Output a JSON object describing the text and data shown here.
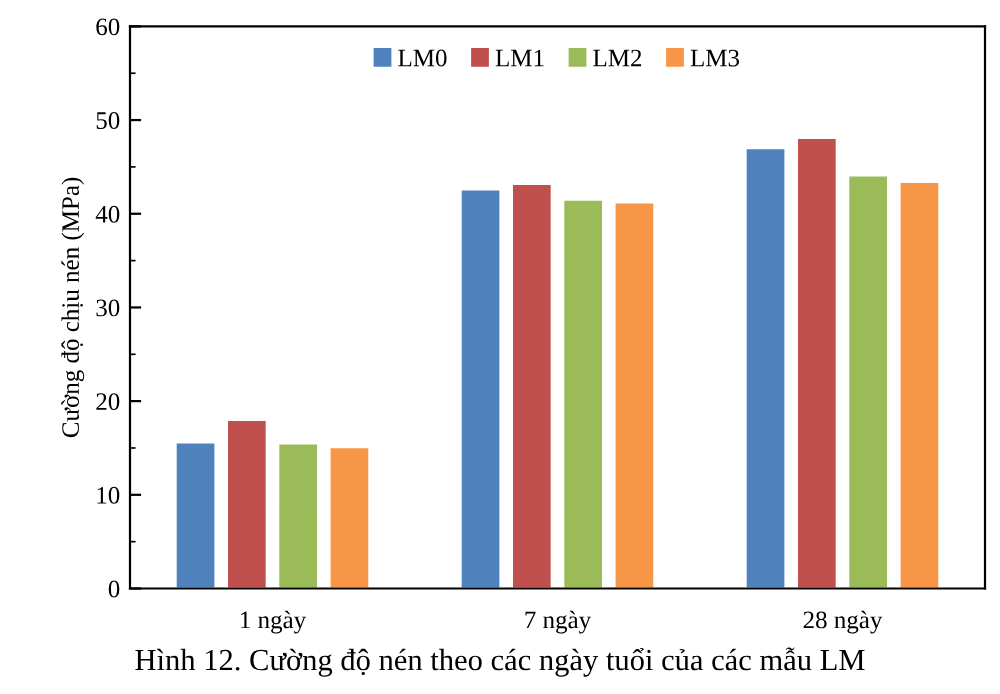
{
  "chart_data": {
    "type": "bar",
    "ylabel": "Cường độ chịu nén (MPa)",
    "categories": [
      "1 ngày",
      "7 ngày",
      "28 ngày"
    ],
    "series": [
      {
        "name": "LM0",
        "color": "#4f81bd",
        "values": [
          15.6,
          42.6,
          47.0
        ]
      },
      {
        "name": "LM1",
        "color": "#c0504d",
        "values": [
          18.0,
          43.2,
          48.1
        ]
      },
      {
        "name": "LM2",
        "color": "#9bbb59",
        "values": [
          15.5,
          41.5,
          44.1
        ]
      },
      {
        "name": "LM3",
        "color": "#f79646",
        "values": [
          15.1,
          41.2,
          43.4
        ]
      }
    ],
    "ylim": [
      0,
      60
    ],
    "yticks": [
      0,
      {
        "value": 5,
        "label": null
      },
      10,
      {
        "value": 15,
        "label": null
      },
      20,
      {
        "value": 25,
        "label": null
      },
      30,
      {
        "value": 35,
        "label": null
      },
      40,
      {
        "value": 45,
        "label": null
      },
      50,
      {
        "value": 55,
        "label": null
      },
      60
    ],
    "legend": "top",
    "grid": false,
    "annotations": [
      "Hình 12. Cường độ nén theo các ngày tuổi của các mẫu LM"
    ]
  }
}
